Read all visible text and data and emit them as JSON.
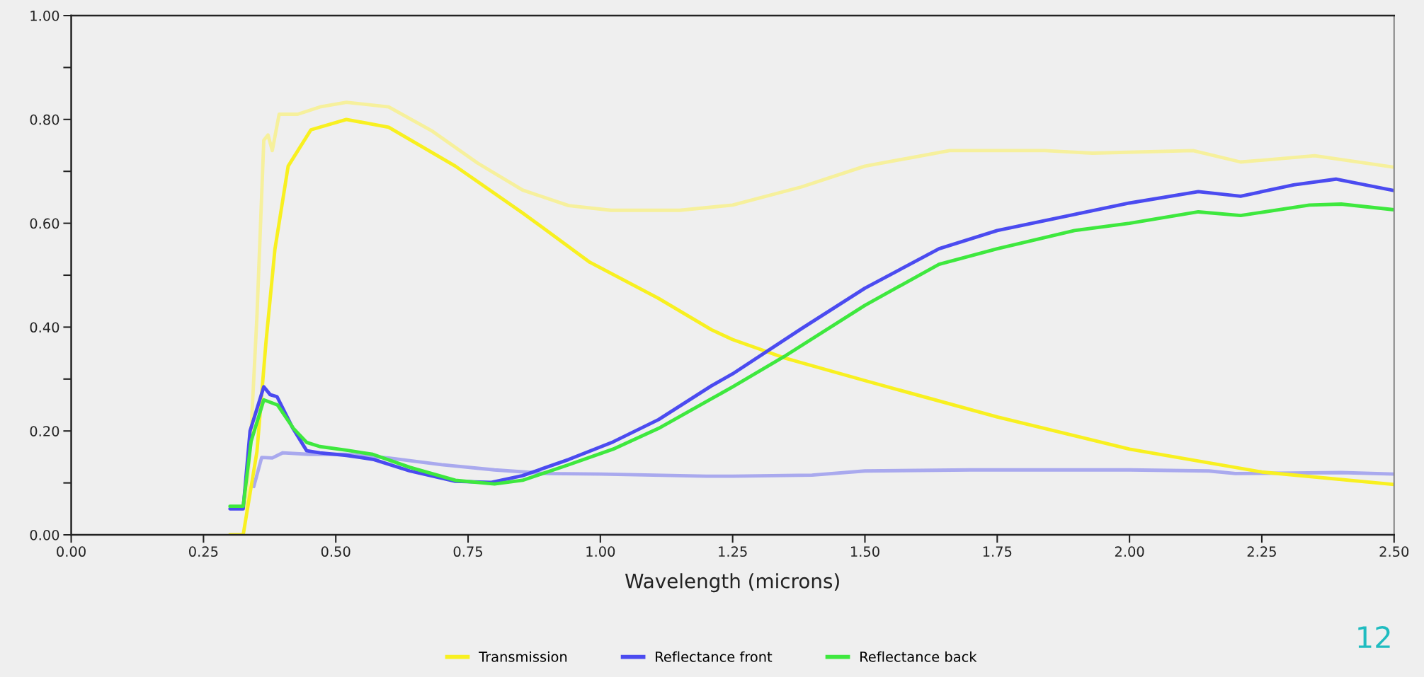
{
  "chart_data": {
    "type": "line",
    "xlabel": "Wavelength (microns)",
    "xlim": [
      0,
      2.5
    ],
    "ylim": [
      0,
      1
    ],
    "xticks": [
      {
        "value": 0,
        "label": "0.00"
      },
      {
        "value": 0.25,
        "label": "0.25"
      },
      {
        "value": 0.5,
        "label": "0.50"
      },
      {
        "value": 0.75,
        "label": "0.75"
      },
      {
        "value": 1,
        "label": "1.00"
      },
      {
        "value": 1.25,
        "label": "1.25"
      },
      {
        "value": 1.5,
        "label": "1.50"
      },
      {
        "value": 1.75,
        "label": "1.75"
      },
      {
        "value": 2,
        "label": "2.00"
      },
      {
        "value": 2.25,
        "label": "2.25"
      },
      {
        "value": 2.5,
        "label": "2.50"
      }
    ],
    "yticks": [
      {
        "value": 0,
        "label": "0.00"
      },
      {
        "value": 0.1,
        "label": null
      },
      {
        "value": 0.2,
        "label": "0.20"
      },
      {
        "value": 0.3,
        "label": null
      },
      {
        "value": 0.4,
        "label": "0.40"
      },
      {
        "value": 0.5,
        "label": null
      },
      {
        "value": 0.6,
        "label": "0.60"
      },
      {
        "value": 0.7,
        "label": null
      },
      {
        "value": 0.8,
        "label": "0.80"
      },
      {
        "value": 0.9,
        "label": null
      },
      {
        "value": 1,
        "label": "1.00"
      }
    ],
    "grid": false,
    "legend": "bottom",
    "marker": "none",
    "line_style": "solid",
    "annotations": [
      "12"
    ],
    "series": [
      {
        "color": "#f6f09c",
        "x": [
          0.33,
          0.34,
          0.351,
          0.364,
          0.372,
          0.38,
          0.393,
          0.428,
          0.47,
          0.52,
          0.6,
          0.683,
          0.768,
          0.853,
          0.94,
          1.02,
          1.15,
          1.25,
          1.38,
          1.5,
          1.66,
          1.84,
          1.93,
          2.12,
          2.21,
          2.35,
          2.5
        ],
        "values": [
          0.05,
          0.2,
          0.42,
          0.76,
          0.77,
          0.74,
          0.81,
          0.81,
          0.824,
          0.833,
          0.824,
          0.777,
          0.716,
          0.664,
          0.634,
          0.625,
          0.625,
          0.635,
          0.67,
          0.71,
          0.74,
          0.74,
          0.735,
          0.74,
          0.718,
          0.73,
          0.708
        ]
      },
      {
        "color": "#a9a9ee",
        "x": [
          0.345,
          0.36,
          0.38,
          0.4,
          0.45,
          0.52,
          0.6,
          0.7,
          0.8,
          0.9,
          1.0,
          1.2,
          1.25,
          1.4,
          1.5,
          1.7,
          2.0,
          2.15,
          2.2,
          2.4,
          2.5
        ],
        "values": [
          0.093,
          0.149,
          0.148,
          0.158,
          0.155,
          0.155,
          0.148,
          0.135,
          0.125,
          0.118,
          0.117,
          0.113,
          0.113,
          0.115,
          0.123,
          0.125,
          0.125,
          0.123,
          0.118,
          0.12,
          0.117
        ]
      },
      {
        "name": "Transmission",
        "color": "#f8f020",
        "x": [
          0.3,
          0.325,
          0.351,
          0.368,
          0.385,
          0.41,
          0.453,
          0.52,
          0.6,
          0.726,
          0.853,
          0.98,
          1.109,
          1.21,
          1.25,
          1.35,
          1.5,
          1.75,
          2.0,
          2.25,
          2.5
        ],
        "values": [
          0,
          0,
          0.16,
          0.37,
          0.55,
          0.71,
          0.78,
          0.8,
          0.785,
          0.71,
          0.62,
          0.525,
          0.456,
          0.395,
          0.376,
          0.34,
          0.297,
          0.227,
          0.165,
          0.121,
          0.097
        ]
      },
      {
        "name": "Reflectance front",
        "color": "#4b4bf0",
        "x": [
          0.3,
          0.325,
          0.338,
          0.364,
          0.376,
          0.389,
          0.419,
          0.445,
          0.47,
          0.52,
          0.572,
          0.64,
          0.726,
          0.794,
          0.853,
          0.94,
          1.024,
          1.11,
          1.21,
          1.25,
          1.38,
          1.5,
          1.64,
          1.75,
          1.896,
          2.0,
          2.13,
          2.21,
          2.31,
          2.39,
          2.5
        ],
        "values": [
          0.05,
          0.05,
          0.2,
          0.285,
          0.27,
          0.266,
          0.205,
          0.162,
          0.158,
          0.153,
          0.145,
          0.123,
          0.103,
          0.101,
          0.114,
          0.145,
          0.179,
          0.222,
          0.287,
          0.31,
          0.397,
          0.475,
          0.551,
          0.586,
          0.617,
          0.639,
          0.661,
          0.652,
          0.674,
          0.685,
          0.663
        ]
      },
      {
        "name": "Reflectance back",
        "color": "#3ee83e",
        "x": [
          0.3,
          0.325,
          0.34,
          0.364,
          0.39,
          0.42,
          0.445,
          0.47,
          0.52,
          0.57,
          0.64,
          0.726,
          0.8,
          0.853,
          0.94,
          1.024,
          1.11,
          1.21,
          1.25,
          1.35,
          1.5,
          1.64,
          1.75,
          1.896,
          2.0,
          2.13,
          2.21,
          2.34,
          2.4,
          2.5
        ],
        "values": [
          0.055,
          0.055,
          0.18,
          0.26,
          0.25,
          0.205,
          0.178,
          0.17,
          0.163,
          0.155,
          0.13,
          0.105,
          0.098,
          0.105,
          0.135,
          0.165,
          0.205,
          0.262,
          0.285,
          0.345,
          0.442,
          0.521,
          0.551,
          0.586,
          0.6,
          0.622,
          0.615,
          0.635,
          0.637,
          0.626
        ]
      }
    ]
  }
}
